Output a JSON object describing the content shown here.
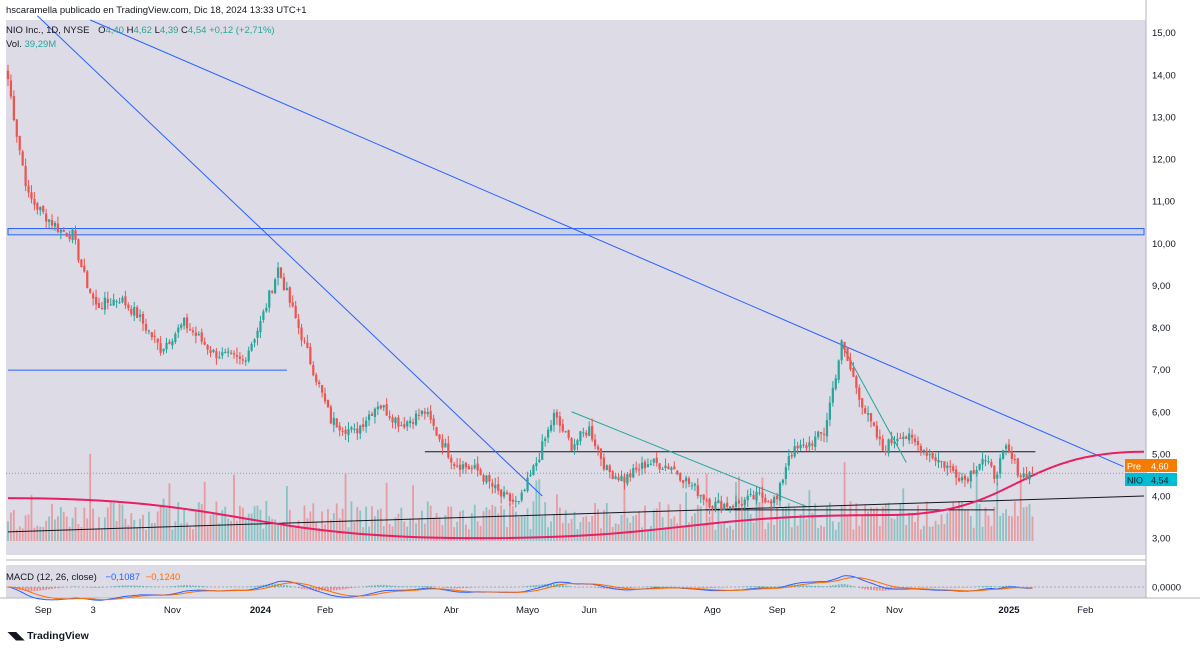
{
  "header": {
    "publisher_line": "hscaramella publicado en TradingView.com, Dic 18, 2024 13:33 UTC+1",
    "symbol_line": "NIO Inc., 1D, NYSE",
    "ohlc": {
      "o_label": "O",
      "o": "4,40",
      "h_label": "H",
      "h": "4,62",
      "l_label": "L",
      "l": "4,39",
      "c_label": "C",
      "c": "4,54",
      "change": "+0,12 (+2,71%)"
    },
    "volume_label": "Vol.",
    "volume_value": "39,29M",
    "macd_label": "MACD (12, 26, close)",
    "macd_value": "−0,1087",
    "signal_value": "−0,1240"
  },
  "footer": {
    "logo_text": "TradingView"
  },
  "colors": {
    "background": "#dcdbe6",
    "up": "#26a69a",
    "down": "#ef5350",
    "trendline_blue": "#2962ff",
    "trendline_green": "#26a69a",
    "arc_pink": "#e91e63",
    "level_black": "#131722",
    "macd_line": "#2962ff",
    "signal_line": "#ff6d00",
    "pre_badge": "#f57c00",
    "price_badge": "#00bcd4"
  },
  "chart_data": {
    "type": "candlestick",
    "symbol": "NIO",
    "interval": "1D",
    "y_axis": {
      "ticks": [
        "15,00",
        "14,00",
        "13,00",
        "12,00",
        "11,00",
        "10,00",
        "9,00",
        "8,00",
        "7,00",
        "6,00",
        "5,00",
        "4,00",
        "3,00"
      ],
      "range": [
        2.6,
        15.3
      ],
      "scale": "linear"
    },
    "x_axis": {
      "ticks": [
        "Sep",
        "3",
        "Nov",
        "2024",
        "Feb",
        "Abr",
        "Mayo",
        "Jun",
        "Ago",
        "Sep",
        "2",
        "Nov",
        "2025",
        "Feb"
      ]
    },
    "price_badges": [
      {
        "label": "Pre",
        "value": "4,60"
      },
      {
        "label": "NIO",
        "value": "4,54"
      }
    ],
    "anchors": [
      [
        0,
        13.9
      ],
      [
        3,
        12.6
      ],
      [
        7,
        11.1
      ],
      [
        12,
        10.7
      ],
      [
        18,
        10.3
      ],
      [
        22,
        10.2
      ],
      [
        26,
        9.2
      ],
      [
        30,
        8.5
      ],
      [
        38,
        8.7
      ],
      [
        44,
        8.3
      ],
      [
        52,
        7.5
      ],
      [
        60,
        8.1
      ],
      [
        70,
        7.4
      ],
      [
        80,
        7.2
      ],
      [
        86,
        8.1
      ],
      [
        92,
        9.4
      ],
      [
        96,
        8.6
      ],
      [
        104,
        7.0
      ],
      [
        110,
        5.8
      ],
      [
        118,
        5.5
      ],
      [
        126,
        6.2
      ],
      [
        134,
        5.7
      ],
      [
        142,
        6.0
      ],
      [
        146,
        5.5
      ],
      [
        152,
        4.8
      ],
      [
        160,
        4.6
      ],
      [
        168,
        4.0
      ],
      [
        174,
        3.8
      ],
      [
        180,
        4.8
      ],
      [
        186,
        5.9
      ],
      [
        192,
        5.2
      ],
      [
        198,
        5.6
      ],
      [
        204,
        4.6
      ],
      [
        210,
        4.4
      ],
      [
        218,
        4.8
      ],
      [
        226,
        4.7
      ],
      [
        232,
        4.3
      ],
      [
        240,
        3.8
      ],
      [
        248,
        3.8
      ],
      [
        256,
        4.0
      ],
      [
        262,
        3.9
      ],
      [
        266,
        5.0
      ],
      [
        272,
        5.2
      ],
      [
        278,
        5.5
      ],
      [
        284,
        7.6
      ],
      [
        288,
        6.8
      ],
      [
        292,
        6.0
      ],
      [
        298,
        5.1
      ],
      [
        304,
        5.5
      ],
      [
        310,
        5.2
      ],
      [
        316,
        4.9
      ],
      [
        322,
        4.6
      ],
      [
        326,
        4.4
      ],
      [
        332,
        4.9
      ],
      [
        336,
        4.5
      ],
      [
        340,
        5.1
      ],
      [
        345,
        4.5
      ],
      [
        349,
        4.54
      ]
    ],
    "volume_peaks": [
      [
        8,
        50
      ],
      [
        28,
        95
      ],
      [
        60,
        35
      ],
      [
        95,
        60
      ],
      [
        126,
        34
      ],
      [
        180,
        36
      ],
      [
        285,
        86
      ],
      [
        330,
        75
      ]
    ],
    "macd": {
      "macd_last": -0.1087,
      "signal_last": -0.124,
      "zero_label": "0,0000"
    },
    "drawings": [
      {
        "type": "horizontal_band",
        "from": [
          0,
          10.35
        ],
        "to": [
          387,
          10.2
        ]
      },
      {
        "type": "horizontal",
        "from": [
          0,
          6.99
        ],
        "to": [
          95,
          6.99
        ]
      },
      {
        "type": "horizontal",
        "from": [
          142,
          5.05
        ],
        "to": [
          350,
          5.05
        ]
      },
      {
        "type": "trendline",
        "from": [
          10,
          15.4
        ],
        "to": [
          182,
          4.0
        ]
      },
      {
        "type": "trendline",
        "from": [
          28,
          15.3
        ],
        "to": [
          380,
          4.7
        ]
      },
      {
        "type": "trendline",
        "from": [
          192,
          6.0
        ],
        "to": [
          272,
          3.75
        ]
      },
      {
        "type": "trendline",
        "from": [
          284,
          7.6
        ],
        "to": [
          306,
          4.8
        ]
      },
      {
        "type": "trendline",
        "from": [
          0,
          3.15
        ],
        "to": [
          387,
          4.0
        ]
      },
      {
        "type": "horizontal",
        "from": [
          238,
          3.67
        ],
        "to": [
          336,
          3.67
        ]
      },
      {
        "type": "arc",
        "from": [
          0,
          3.95
        ],
        "through": [
          [
            160,
            3.0
          ],
          [
            300,
            3.55
          ]
        ],
        "to": [
          387,
          5.05
        ]
      }
    ]
  }
}
